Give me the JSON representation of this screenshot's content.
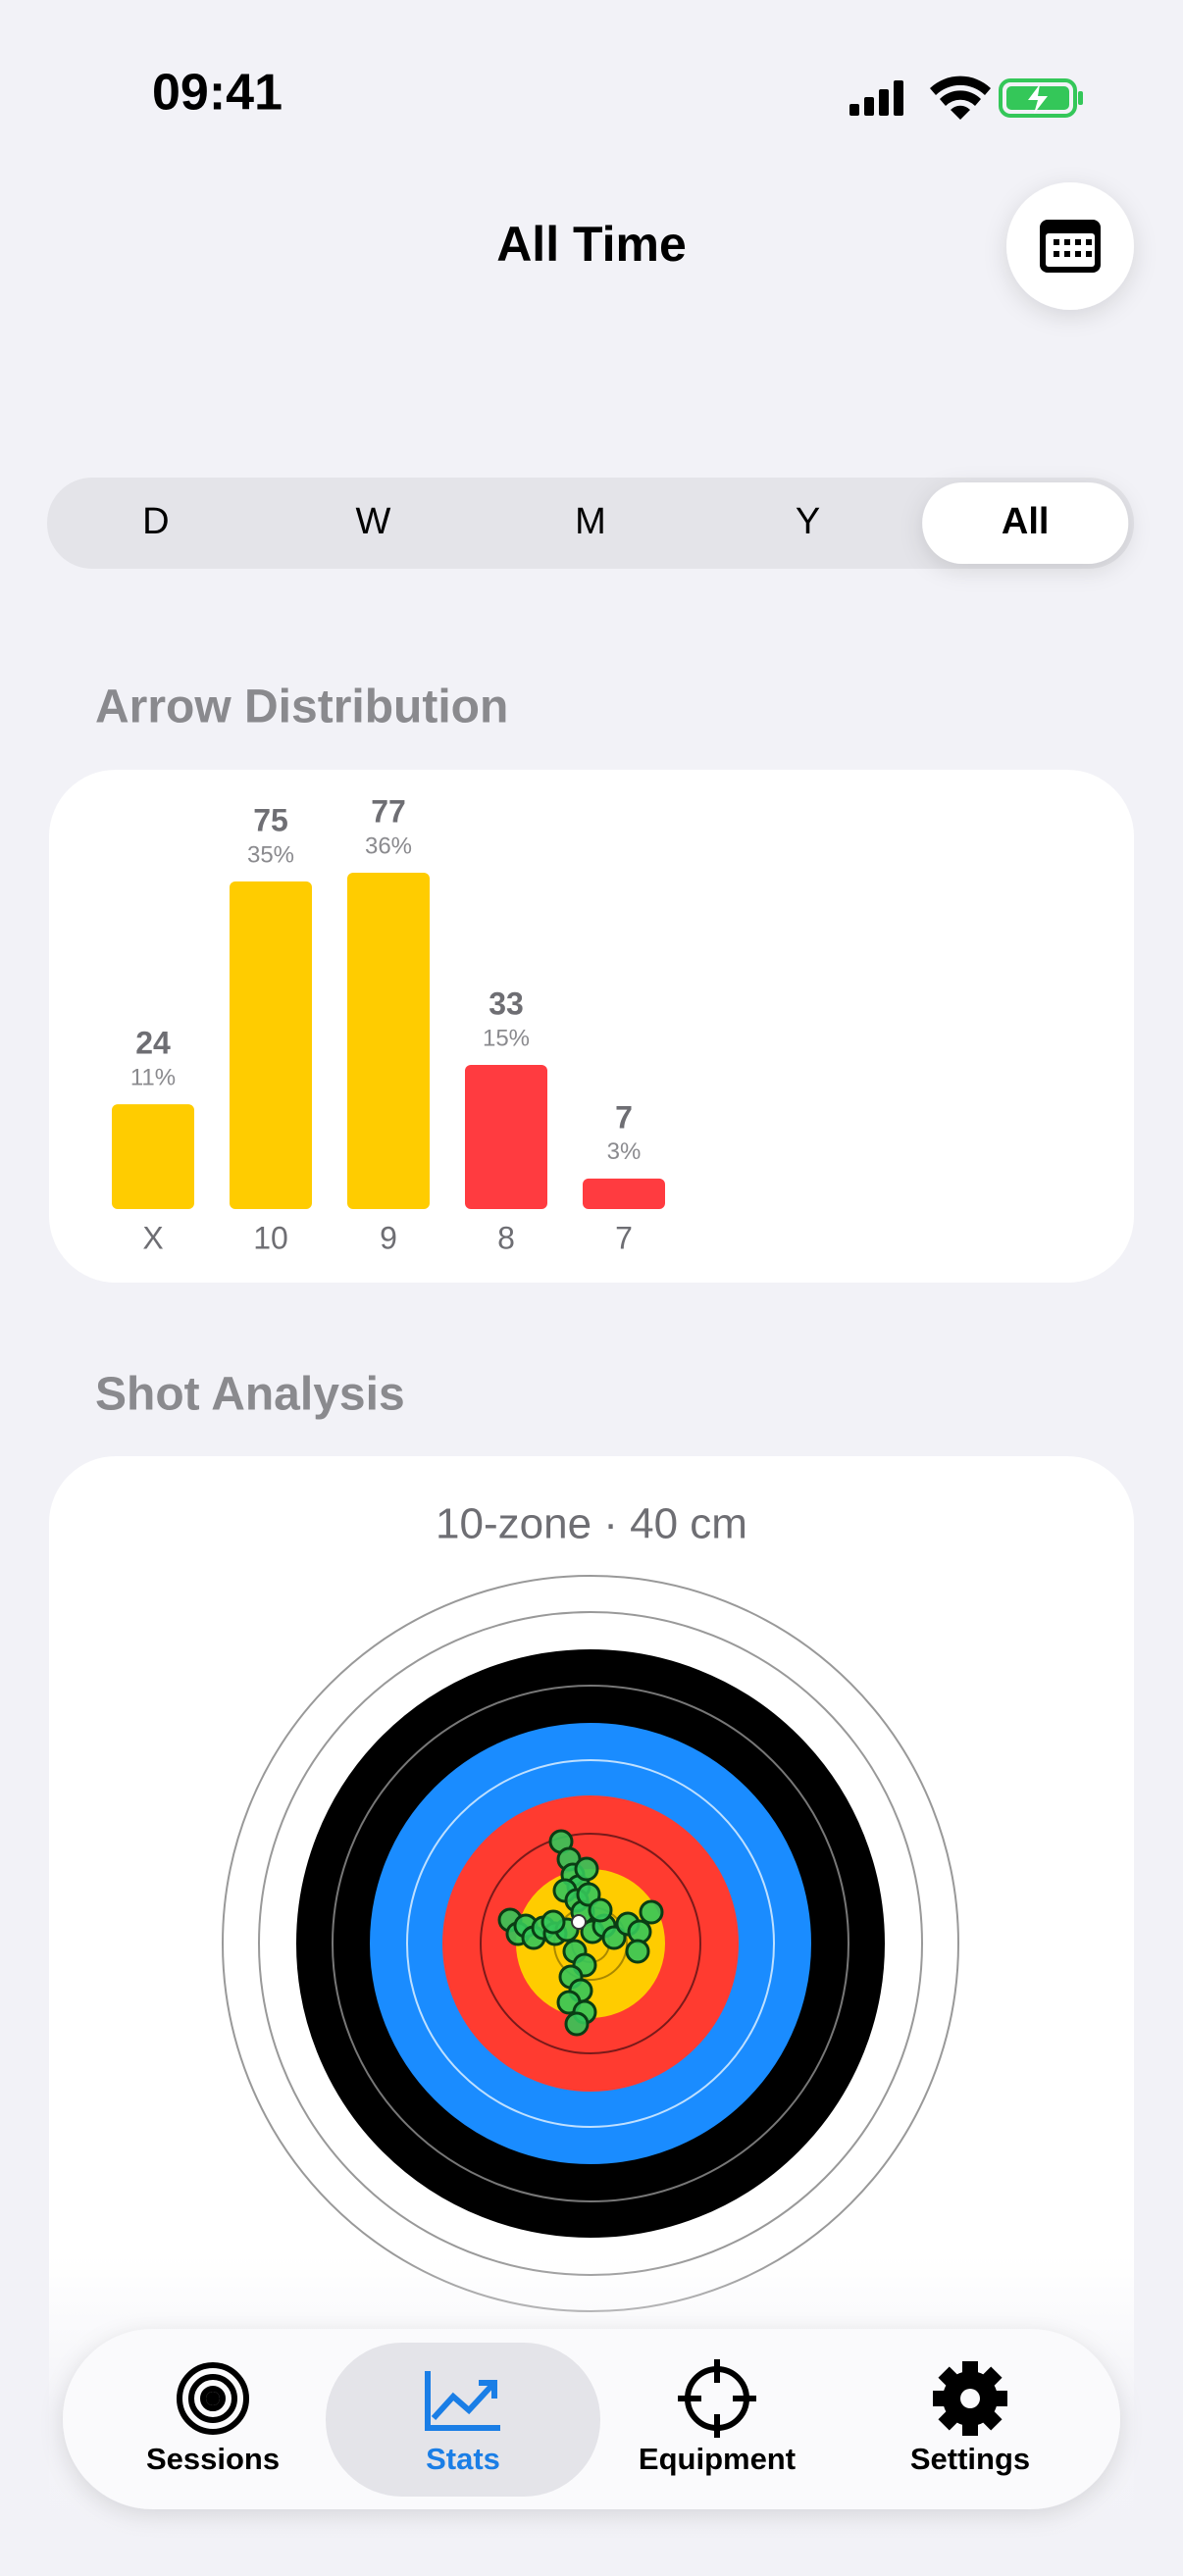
{
  "status_bar": {
    "time": "09:41"
  },
  "header": {
    "title": "All Time"
  },
  "segments": {
    "options": [
      "D",
      "W",
      "M",
      "Y",
      "All"
    ],
    "selected_index": 4
  },
  "arrow_distribution": {
    "title": "Arrow Distribution",
    "categories": [
      "X",
      "10",
      "9",
      "8",
      "7"
    ],
    "counts": [
      24,
      75,
      77,
      33,
      7
    ],
    "percent_labels": [
      "11%",
      "35%",
      "36%",
      "15%",
      "3%"
    ],
    "colors": [
      "#ffcc00",
      "#ffcc00",
      "#ffcc00",
      "#ff3b40",
      "#ff3b40"
    ]
  },
  "shot_analysis": {
    "title": "Shot Analysis",
    "target_label": "10-zone · 40 cm"
  },
  "tab_bar": {
    "tabs": [
      "Sessions",
      "Stats",
      "Equipment",
      "Settings"
    ],
    "selected_index": 1,
    "active_color": "#1a7ee6"
  }
}
